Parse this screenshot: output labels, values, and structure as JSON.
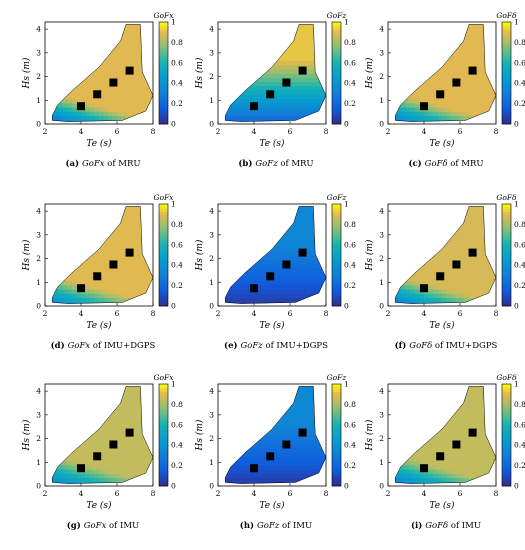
{
  "figure": {
    "panels": [
      {
        "id": "a",
        "caption_tag": "(a)",
        "caption_metric": "GoFx",
        "caption_rest": "of MRU",
        "colorbar_label": "GoFx"
      },
      {
        "id": "b",
        "caption_tag": "(b)",
        "caption_metric": "GoFz",
        "caption_rest": "of MRU",
        "colorbar_label": "GoFz"
      },
      {
        "id": "c",
        "caption_tag": "(c)",
        "caption_metric": "GoFδ",
        "caption_rest": "of MRU",
        "colorbar_label": "GoFδ"
      },
      {
        "id": "d",
        "caption_tag": "(d)",
        "caption_metric": "GoFx",
        "caption_rest": "of IMU+DGPS",
        "colorbar_label": "GoFx"
      },
      {
        "id": "e",
        "caption_tag": "(e)",
        "caption_metric": "GoFz",
        "caption_rest": "of IMU+DGPS",
        "colorbar_label": "GoFz"
      },
      {
        "id": "f",
        "caption_tag": "(f)",
        "caption_metric": "GoFδ",
        "caption_rest": "of IMU+DGPS",
        "colorbar_label": "GoFδ"
      },
      {
        "id": "g",
        "caption_tag": "(g)",
        "caption_metric": "GoFx",
        "caption_rest": "of IMU",
        "colorbar_label": "GoFx"
      },
      {
        "id": "h",
        "caption_tag": "(h)",
        "caption_metric": "GoFz",
        "caption_rest": "of IMU",
        "colorbar_label": "GoFz"
      },
      {
        "id": "i",
        "caption_tag": "(i)",
        "caption_metric": "GoFδ",
        "caption_rest": "of IMU",
        "colorbar_label": "GoFδ"
      }
    ]
  },
  "chart_data": [
    {
      "type": "heatmap",
      "panel": "a",
      "xlabel": "Te (s)",
      "ylabel": "Hs (m)",
      "xlim": [
        2,
        8
      ],
      "ylim": [
        0,
        4.3
      ],
      "xticks": [
        2,
        4,
        6,
        8
      ],
      "yticks": [
        0,
        1,
        2,
        3,
        4
      ],
      "colorbar_ticks": [
        0,
        0.2,
        0.4,
        0.6,
        0.8,
        1
      ],
      "clim": [
        0,
        1
      ],
      "colormap": "parula",
      "markers": {
        "x": [
          4.0,
          4.9,
          5.8,
          6.7
        ],
        "y": [
          0.75,
          1.25,
          1.75,
          2.25
        ]
      },
      "field_levels": {
        "base": 0.9,
        "low_edge": 0.25
      }
    },
    {
      "type": "heatmap",
      "panel": "b",
      "xlabel": "Te (s)",
      "ylabel": "Hs (m)",
      "xlim": [
        2,
        8
      ],
      "ylim": [
        0,
        4.3
      ],
      "xticks": [
        2,
        4,
        6,
        8
      ],
      "yticks": [
        0,
        1,
        2,
        3,
        4
      ],
      "colorbar_ticks": [
        0,
        0.2,
        0.4,
        0.6,
        0.8,
        1
      ],
      "clim": [
        0,
        1
      ],
      "colormap": "parula",
      "markers": {
        "x": [
          4.0,
          4.9,
          5.8,
          6.7
        ],
        "y": [
          0.75,
          1.25,
          1.75,
          2.25
        ]
      },
      "field_levels": {
        "base": 0.92,
        "low": 0.2
      }
    },
    {
      "type": "heatmap",
      "panel": "c",
      "xlabel": "Te (s)",
      "ylabel": "Hs (m)",
      "xlim": [
        2,
        8
      ],
      "ylim": [
        0,
        4.3
      ],
      "xticks": [
        2,
        4,
        6,
        8
      ],
      "yticks": [
        0,
        1,
        2,
        3,
        4
      ],
      "colorbar_ticks": [
        0,
        0.2,
        0.4,
        0.6,
        0.8,
        1
      ],
      "clim": [
        0,
        1
      ],
      "colormap": "parula",
      "markers": {
        "x": [
          4.0,
          4.9,
          5.8,
          6.7
        ],
        "y": [
          0.75,
          1.25,
          1.75,
          2.25
        ]
      },
      "field_levels": {
        "base": 0.9,
        "low_edge": 0.3
      }
    },
    {
      "type": "heatmap",
      "panel": "d",
      "xlabel": "Te (s)",
      "ylabel": "Hs (m)",
      "xlim": [
        2,
        8
      ],
      "ylim": [
        0,
        4.3
      ],
      "xticks": [
        2,
        4,
        6,
        8
      ],
      "yticks": [
        0,
        1,
        2,
        3,
        4
      ],
      "colorbar_ticks": [
        0,
        0.2,
        0.4,
        0.6,
        0.8,
        1
      ],
      "clim": [
        0,
        1
      ],
      "colormap": "parula",
      "markers": {
        "x": [
          4.0,
          4.9,
          5.8,
          6.7
        ],
        "y": [
          0.75,
          1.25,
          1.75,
          2.25
        ]
      },
      "field_levels": {
        "base": 0.9,
        "low_edge": 0.35
      }
    },
    {
      "type": "heatmap",
      "panel": "e",
      "xlabel": "Te (s)",
      "ylabel": "Hs (m)",
      "xlim": [
        2,
        8
      ],
      "ylim": [
        0,
        4.3
      ],
      "xticks": [
        2,
        4,
        6,
        8
      ],
      "yticks": [
        0,
        1,
        2,
        3,
        4
      ],
      "colorbar_ticks": [
        0,
        0.2,
        0.4,
        0.6,
        0.8,
        1
      ],
      "clim": [
        0,
        1
      ],
      "colormap": "parula",
      "markers": {
        "x": [
          4.0,
          4.9,
          5.8,
          6.7
        ],
        "y": [
          0.75,
          1.25,
          1.75,
          2.25
        ]
      },
      "field_levels": {
        "base": 0.35,
        "low": 0.05
      }
    },
    {
      "type": "heatmap",
      "panel": "f",
      "xlabel": "Te (s)",
      "ylabel": "Hs (m)",
      "xlim": [
        2,
        8
      ],
      "ylim": [
        0,
        4.3
      ],
      "xticks": [
        2,
        4,
        6,
        8
      ],
      "yticks": [
        0,
        1,
        2,
        3,
        4
      ],
      "colorbar_ticks": [
        0,
        0.2,
        0.4,
        0.6,
        0.8,
        1
      ],
      "clim": [
        0,
        1
      ],
      "colormap": "parula",
      "markers": {
        "x": [
          4.0,
          4.9,
          5.8,
          6.7
        ],
        "y": [
          0.75,
          1.25,
          1.75,
          2.25
        ]
      },
      "field_levels": {
        "base": 0.88,
        "low_edge": 0.3
      }
    },
    {
      "type": "heatmap",
      "panel": "g",
      "xlabel": "Te (s)",
      "ylabel": "Hs (m)",
      "xlim": [
        2,
        8
      ],
      "ylim": [
        0,
        4.3
      ],
      "xticks": [
        2,
        4,
        6,
        8
      ],
      "yticks": [
        0,
        1,
        2,
        3,
        4
      ],
      "colorbar_ticks": [
        0,
        0.2,
        0.4,
        0.6,
        0.8,
        1
      ],
      "clim": [
        0,
        1
      ],
      "colormap": "parula",
      "markers": {
        "x": [
          4.0,
          4.9,
          5.8,
          6.7
        ],
        "y": [
          0.75,
          1.25,
          1.75,
          2.25
        ]
      },
      "field_levels": {
        "base": 0.85,
        "low_edge": 0.35
      }
    },
    {
      "type": "heatmap",
      "panel": "h",
      "xlabel": "Te (s)",
      "ylabel": "Hs (m)",
      "xlim": [
        2,
        8
      ],
      "ylim": [
        0,
        4.3
      ],
      "xticks": [
        2,
        4,
        6,
        8
      ],
      "yticks": [
        0,
        1,
        2,
        3,
        4
      ],
      "colorbar_ticks": [
        0,
        0.2,
        0.4,
        0.6,
        0.8,
        1
      ],
      "clim": [
        0,
        1
      ],
      "colormap": "parula",
      "markers": {
        "x": [
          4.0,
          4.9,
          5.8,
          6.7
        ],
        "y": [
          0.75,
          1.25,
          1.75,
          2.25
        ]
      },
      "field_levels": {
        "base": 0.35,
        "low": 0.05
      }
    },
    {
      "type": "heatmap",
      "panel": "i",
      "xlabel": "Te (s)",
      "ylabel": "Hs (m)",
      "xlim": [
        2,
        8
      ],
      "ylim": [
        0,
        4.3
      ],
      "xticks": [
        2,
        4,
        6,
        8
      ],
      "yticks": [
        0,
        1,
        2,
        3,
        4
      ],
      "colorbar_ticks": [
        0,
        0.2,
        0.4,
        0.6,
        0.8,
        1
      ],
      "clim": [
        0,
        1
      ],
      "colormap": "parula",
      "markers": {
        "x": [
          4.0,
          4.9,
          5.8,
          6.7
        ],
        "y": [
          0.75,
          1.25,
          1.75,
          2.25
        ]
      },
      "field_levels": {
        "base": 0.85,
        "low_edge": 0.3
      }
    }
  ]
}
